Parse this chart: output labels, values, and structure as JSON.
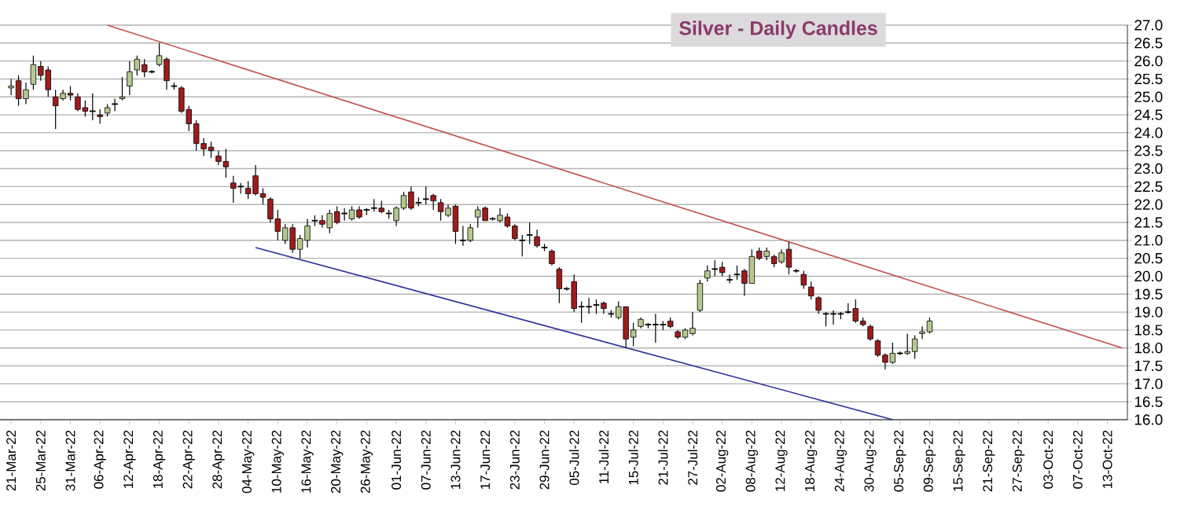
{
  "chart_data": {
    "type": "candlestick",
    "title": "Silver - Daily Candles",
    "categories": [
      "21-Mar-22",
      null,
      null,
      null,
      "25-Mar-22",
      null,
      null,
      null,
      "31-Mar-22",
      null,
      null,
      null,
      "06-Apr-22",
      null,
      null,
      null,
      "12-Apr-22",
      null,
      null,
      null,
      "18-Apr-22",
      null,
      null,
      null,
      "22-Apr-22",
      null,
      null,
      null,
      "28-Apr-22",
      null,
      null,
      null,
      "04-May-22",
      null,
      null,
      null,
      "10-May-22",
      null,
      null,
      null,
      "16-May-22",
      null,
      null,
      null,
      "20-May-22",
      null,
      null,
      null,
      "26-May-22",
      null,
      null,
      null,
      "01-Jun-22",
      null,
      null,
      null,
      "07-Jun-22",
      null,
      null,
      null,
      "13-Jun-22",
      null,
      null,
      null,
      "17-Jun-22",
      null,
      null,
      null,
      "23-Jun-22",
      null,
      null,
      null,
      "29-Jun-22",
      null,
      null,
      null,
      "05-Jul-22",
      null,
      null,
      null,
      "11-Jul-22",
      null,
      null,
      null,
      "15-Jul-22",
      null,
      null,
      null,
      "21-Jul-22",
      null,
      null,
      null,
      "27-Jul-22",
      null,
      null,
      null,
      "02-Aug-22",
      null,
      null,
      null,
      "08-Aug-22",
      null,
      null,
      null,
      "12-Aug-22",
      null,
      null,
      null,
      "18-Aug-22",
      null,
      null,
      null,
      "24-Aug-22",
      null,
      null,
      null,
      "30-Aug-22",
      null,
      null,
      null,
      "05-Sep-22",
      null,
      null,
      null,
      "09-Sep-22",
      null,
      null,
      null,
      "15-Sep-22",
      null,
      null,
      null,
      "21-Sep-22",
      null,
      null,
      null,
      "27-Sep-22",
      null,
      null,
      null,
      "03-Oct-22",
      null,
      null,
      null,
      "07-Oct-22",
      null,
      null,
      null,
      "13-Oct-22",
      null,
      null
    ],
    "ohlc": [
      [
        25.25,
        25.5,
        25.05,
        25.3
      ],
      [
        25.45,
        25.6,
        24.75,
        24.95
      ],
      [
        24.95,
        25.4,
        24.8,
        25.2
      ],
      [
        25.35,
        26.15,
        25.2,
        25.9
      ],
      [
        25.85,
        26.0,
        25.45,
        25.6
      ],
      [
        25.75,
        25.85,
        25.0,
        25.2
      ],
      [
        25.0,
        25.2,
        24.1,
        24.75
      ],
      [
        24.95,
        25.2,
        24.9,
        25.1
      ],
      [
        25.1,
        25.3,
        24.9,
        25.05
      ],
      [
        25.0,
        25.1,
        24.6,
        24.65
      ],
      [
        24.7,
        24.9,
        24.45,
        24.6
      ],
      [
        24.6,
        25.1,
        24.35,
        24.6
      ],
      [
        24.5,
        24.65,
        24.25,
        24.45
      ],
      [
        24.55,
        24.8,
        24.45,
        24.7
      ],
      [
        24.8,
        24.95,
        24.6,
        24.8
      ],
      [
        24.95,
        25.55,
        24.9,
        25.0
      ],
      [
        25.3,
        26.0,
        25.05,
        25.7
      ],
      [
        25.75,
        26.15,
        25.6,
        26.05
      ],
      [
        25.9,
        26.05,
        25.55,
        25.7
      ],
      [
        25.7,
        25.75,
        25.65,
        25.7
      ],
      [
        25.9,
        26.5,
        25.85,
        26.15
      ],
      [
        26.05,
        26.1,
        25.2,
        25.45
      ],
      [
        25.3,
        25.4,
        25.2,
        25.3
      ],
      [
        25.25,
        25.3,
        24.55,
        24.6
      ],
      [
        24.65,
        24.75,
        24.05,
        24.25
      ],
      [
        24.25,
        24.35,
        23.5,
        23.7
      ],
      [
        23.7,
        23.85,
        23.35,
        23.55
      ],
      [
        23.6,
        23.75,
        23.3,
        23.5
      ],
      [
        23.35,
        23.5,
        23.1,
        23.2
      ],
      [
        23.2,
        23.55,
        22.75,
        23.05
      ],
      [
        22.6,
        22.8,
        22.05,
        22.45
      ],
      [
        22.5,
        22.6,
        22.3,
        22.5
      ],
      [
        22.45,
        22.65,
        22.15,
        22.3
      ],
      [
        22.8,
        23.1,
        22.25,
        22.3
      ],
      [
        22.3,
        22.45,
        22.0,
        22.2
      ],
      [
        22.15,
        22.2,
        21.5,
        21.6
      ],
      [
        21.6,
        21.85,
        21.0,
        21.25
      ],
      [
        21.0,
        21.45,
        20.9,
        21.35
      ],
      [
        21.35,
        21.45,
        20.65,
        20.75
      ],
      [
        20.75,
        21.15,
        20.5,
        21.05
      ],
      [
        21.0,
        21.6,
        20.8,
        21.4
      ],
      [
        21.55,
        21.7,
        21.4,
        21.55
      ],
      [
        21.55,
        21.7,
        21.35,
        21.45
      ],
      [
        21.35,
        21.85,
        21.2,
        21.75
      ],
      [
        21.8,
        21.95,
        21.45,
        21.5
      ],
      [
        21.75,
        21.9,
        21.55,
        21.75
      ],
      [
        21.6,
        21.95,
        21.55,
        21.85
      ],
      [
        21.85,
        21.95,
        21.6,
        21.65
      ],
      [
        21.85,
        21.9,
        21.7,
        21.85
      ],
      [
        21.9,
        22.15,
        21.8,
        21.9
      ],
      [
        21.9,
        22.1,
        21.75,
        21.8
      ],
      [
        21.75,
        21.85,
        21.6,
        21.75
      ],
      [
        21.55,
        21.95,
        21.4,
        21.9
      ],
      [
        21.9,
        22.35,
        21.85,
        22.25
      ],
      [
        22.35,
        22.5,
        21.85,
        21.9
      ],
      [
        22.05,
        22.2,
        21.95,
        22.05
      ],
      [
        22.15,
        22.5,
        22.0,
        22.15
      ],
      [
        22.25,
        22.3,
        21.85,
        22.1
      ],
      [
        22.05,
        22.15,
        21.55,
        21.8
      ],
      [
        21.7,
        22.0,
        21.65,
        21.9
      ],
      [
        21.95,
        22.0,
        20.9,
        21.25
      ],
      [
        21.0,
        21.4,
        20.85,
        21.0
      ],
      [
        21.0,
        21.45,
        20.95,
        21.35
      ],
      [
        21.65,
        21.95,
        21.35,
        21.85
      ],
      [
        21.9,
        21.95,
        21.55,
        21.55
      ],
      [
        21.6,
        21.65,
        21.55,
        21.6
      ],
      [
        21.55,
        21.9,
        21.5,
        21.7
      ],
      [
        21.65,
        21.75,
        21.35,
        21.4
      ],
      [
        21.4,
        21.45,
        21.0,
        21.05
      ],
      [
        21.0,
        21.15,
        20.55,
        21.0
      ],
      [
        21.15,
        21.5,
        20.9,
        21.15
      ],
      [
        21.1,
        21.3,
        20.8,
        20.85
      ],
      [
        20.8,
        20.9,
        20.7,
        20.8
      ],
      [
        20.7,
        20.75,
        20.3,
        20.35
      ],
      [
        20.2,
        20.25,
        19.25,
        19.65
      ],
      [
        19.65,
        19.7,
        19.6,
        19.65
      ],
      [
        19.85,
        20.05,
        19.0,
        19.1
      ],
      [
        19.15,
        19.3,
        18.7,
        19.15
      ],
      [
        19.15,
        19.4,
        18.95,
        19.15
      ],
      [
        19.2,
        19.35,
        18.95,
        19.2
      ],
      [
        19.25,
        19.3,
        18.95,
        19.1
      ],
      [
        18.95,
        19.05,
        18.85,
        18.95
      ],
      [
        18.85,
        19.3,
        18.8,
        19.15
      ],
      [
        19.15,
        19.15,
        18.0,
        18.25
      ],
      [
        18.3,
        18.7,
        18.05,
        18.5
      ],
      [
        18.6,
        18.85,
        18.55,
        18.8
      ],
      [
        18.65,
        18.7,
        18.55,
        18.65
      ],
      [
        18.65,
        18.95,
        18.15,
        18.65
      ],
      [
        18.65,
        18.75,
        18.5,
        18.65
      ],
      [
        18.75,
        18.85,
        18.55,
        18.6
      ],
      [
        18.45,
        18.5,
        18.25,
        18.3
      ],
      [
        18.3,
        18.55,
        18.25,
        18.5
      ],
      [
        18.4,
        19.0,
        18.35,
        18.55
      ],
      [
        19.05,
        19.9,
        19.0,
        19.8
      ],
      [
        19.95,
        20.3,
        19.85,
        20.15
      ],
      [
        20.2,
        20.45,
        20.0,
        20.2
      ],
      [
        20.25,
        20.4,
        20.0,
        20.1
      ],
      [
        19.9,
        20.05,
        19.8,
        19.9
      ],
      [
        20.05,
        20.3,
        19.9,
        20.05
      ],
      [
        20.15,
        20.2,
        19.45,
        19.8
      ],
      [
        19.8,
        20.75,
        19.8,
        20.55
      ],
      [
        20.7,
        20.8,
        20.45,
        20.5
      ],
      [
        20.55,
        20.8,
        20.45,
        20.7
      ],
      [
        20.55,
        20.6,
        20.25,
        20.35
      ],
      [
        20.4,
        20.75,
        20.35,
        20.65
      ],
      [
        20.75,
        20.95,
        20.05,
        20.25
      ],
      [
        20.15,
        20.2,
        20.1,
        20.15
      ],
      [
        20.05,
        20.15,
        19.65,
        19.75
      ],
      [
        19.7,
        19.85,
        19.35,
        19.45
      ],
      [
        19.4,
        19.45,
        18.95,
        19.05
      ],
      [
        18.95,
        19.0,
        18.6,
        18.95
      ],
      [
        18.95,
        19.05,
        18.65,
        18.95
      ],
      [
        18.95,
        19.0,
        18.8,
        18.95
      ],
      [
        19.0,
        19.25,
        18.95,
        19.0
      ],
      [
        19.1,
        19.35,
        18.7,
        18.75
      ],
      [
        18.75,
        18.85,
        18.6,
        18.65
      ],
      [
        18.6,
        18.65,
        18.2,
        18.25
      ],
      [
        18.2,
        18.25,
        17.75,
        17.8
      ],
      [
        17.8,
        17.85,
        17.4,
        17.6
      ],
      [
        17.6,
        18.15,
        17.55,
        17.85
      ],
      [
        17.85,
        17.9,
        17.8,
        17.85
      ],
      [
        17.85,
        18.4,
        17.8,
        17.9
      ],
      [
        17.9,
        18.35,
        17.7,
        18.25
      ],
      [
        18.4,
        18.6,
        18.25,
        18.45
      ],
      [
        18.45,
        18.85,
        18.4,
        18.75
      ],
      null,
      null,
      null,
      null,
      null,
      null,
      null,
      null,
      null,
      null,
      null,
      null,
      null,
      null,
      null,
      null,
      null,
      null,
      null,
      null,
      null,
      null,
      null,
      null,
      null,
      null
    ],
    "series": [
      {
        "type": "line",
        "color": "#c0504d",
        "values": [
          null,
          null,
          null,
          null,
          null,
          null,
          null,
          null,
          null,
          null,
          null,
          null,
          null,
          27.0,
          null,
          null,
          null,
          null,
          null,
          null,
          null,
          null,
          null,
          null,
          null,
          null,
          null,
          null,
          null,
          null,
          null,
          null,
          null,
          null,
          null,
          null,
          null,
          null,
          null,
          null,
          null,
          null,
          null,
          null,
          null,
          null,
          null,
          null,
          null,
          null,
          null,
          null,
          null,
          null,
          null,
          null,
          null,
          null,
          null,
          null,
          null,
          null,
          null,
          null,
          null,
          null,
          null,
          null,
          null,
          null,
          null,
          null,
          null,
          null,
          null,
          null,
          null,
          null,
          null,
          null,
          null,
          null,
          null,
          null,
          null,
          null,
          null,
          null,
          null,
          null,
          null,
          null,
          null,
          null,
          null,
          null,
          null,
          null,
          null,
          null,
          null,
          null,
          null,
          null,
          null,
          null,
          null,
          null,
          null,
          null,
          null,
          null,
          null,
          null,
          null,
          null,
          null,
          null,
          null,
          null,
          null,
          null,
          null,
          null,
          null,
          null,
          null,
          null,
          null,
          null,
          null,
          null,
          null,
          null,
          null,
          null,
          null,
          null,
          null,
          null,
          null,
          null,
          null,
          null,
          null,
          null,
          null,
          null,
          null,
          null,
          18.0
        ]
      },
      {
        "type": "line",
        "color": "#2e2e9a",
        "values": [
          null,
          null,
          null,
          null,
          null,
          null,
          null,
          null,
          null,
          null,
          null,
          null,
          null,
          null,
          null,
          null,
          null,
          null,
          null,
          null,
          null,
          null,
          null,
          null,
          null,
          null,
          null,
          null,
          null,
          null,
          null,
          null,
          null,
          20.8,
          null,
          null,
          null,
          null,
          null,
          null,
          null,
          null,
          null,
          null,
          null,
          null,
          null,
          null,
          null,
          null,
          null,
          null,
          null,
          null,
          null,
          null,
          null,
          null,
          null,
          null,
          null,
          null,
          null,
          null,
          null,
          null,
          null,
          null,
          null,
          null,
          null,
          null,
          null,
          null,
          null,
          null,
          null,
          null,
          null,
          null,
          null,
          null,
          null,
          null,
          null,
          null,
          null,
          null,
          null,
          null,
          null,
          null,
          null,
          null,
          null,
          null,
          null,
          null,
          null,
          null,
          null,
          null,
          null,
          null,
          null,
          null,
          null,
          null,
          null,
          null,
          null,
          null,
          null,
          null,
          null,
          null,
          null,
          null,
          null,
          16.0,
          null,
          null,
          null,
          null,
          null,
          null,
          null,
          null,
          null,
          null,
          null,
          null,
          null,
          null,
          null,
          null,
          null,
          null,
          null,
          null,
          null,
          null,
          null,
          null,
          null,
          null,
          null,
          null,
          null,
          null,
          null
        ]
      }
    ],
    "ylim": [
      16,
      27
    ],
    "yticks": [
      {
        "value": 16,
        "label": "16.0"
      },
      16.5,
      {
        "value": 17,
        "label": "17.0"
      },
      17.5,
      {
        "value": 18,
        "label": "18.0"
      },
      18.5,
      {
        "value": 19,
        "label": "19.0"
      },
      19.5,
      {
        "value": 20,
        "label": "20.0"
      },
      20.5,
      {
        "value": 21,
        "label": "21.0"
      },
      21.5,
      {
        "value": 22,
        "label": "22.0"
      },
      22.5,
      {
        "value": 23,
        "label": "23.0"
      },
      23.5,
      {
        "value": 24,
        "label": "24.0"
      },
      24.5,
      {
        "value": 25,
        "label": "25.0"
      },
      25.5,
      {
        "value": 26,
        "label": "26.0"
      },
      26.5,
      {
        "value": 27,
        "label": "27.0"
      }
    ],
    "grid": "y"
  }
}
